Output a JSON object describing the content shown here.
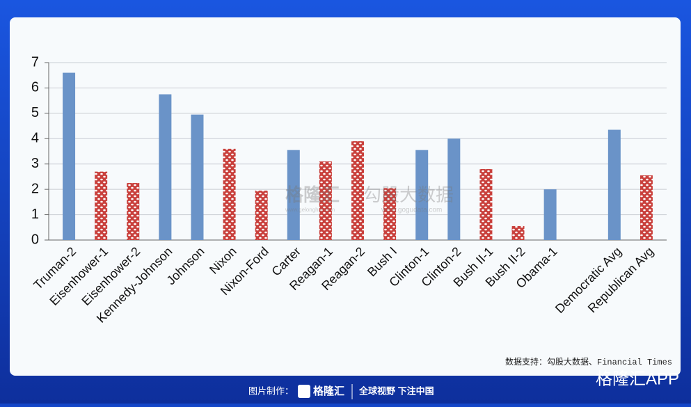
{
  "chart_data": {
    "type": "bar",
    "categories": [
      "Truman-2",
      "Eisenhower-1",
      "Eisenhower-2",
      "Kennedy-Johnson",
      "Johnson",
      "Nixon",
      "Nixon-Ford",
      "Carter",
      "Reagan-1",
      "Reagan-2",
      "Bush I",
      "Clinton-1",
      "Clinton-2",
      "Bush II-1",
      "Bush II-2",
      "Obama-1",
      null,
      "Democratic Avg",
      "Republican Avg"
    ],
    "values": [
      6.6,
      2.7,
      2.25,
      5.75,
      4.95,
      3.6,
      1.95,
      3.55,
      3.1,
      3.9,
      2.05,
      3.55,
      4.0,
      2.8,
      0.55,
      2.0,
      null,
      4.35,
      2.55
    ],
    "colors": [
      "#6a93c8",
      "#c9403c",
      "#c9403c",
      "#6a93c8",
      "#6a93c8",
      "#c9403c",
      "#c9403c",
      "#6a93c8",
      "#c9403c",
      "#c9403c",
      "#c9403c",
      "#6a93c8",
      "#6a93c8",
      "#c9403c",
      "#c9403c",
      "#6a93c8",
      null,
      "#6a93c8",
      "#c9403c"
    ],
    "patterned": [
      false,
      true,
      true,
      false,
      false,
      true,
      true,
      false,
      true,
      true,
      true,
      false,
      false,
      true,
      true,
      false,
      null,
      false,
      true
    ],
    "ylim": [
      0,
      7
    ],
    "yticks": [
      0,
      1,
      2,
      3,
      4,
      5,
      6,
      7
    ],
    "grid": true,
    "source": "数据支持：勾股大数据、Financial Times"
  },
  "watermark": {
    "brand": "格隆汇",
    "brand_url": "www.gelonghui.com",
    "data": "勾股大数据",
    "data_url": "www.gogudata.com"
  },
  "footer": {
    "made_by": "图片制作：",
    "brand": "格隆汇",
    "slogan": "全球视野 下注中国",
    "app": "格隆汇APP"
  }
}
